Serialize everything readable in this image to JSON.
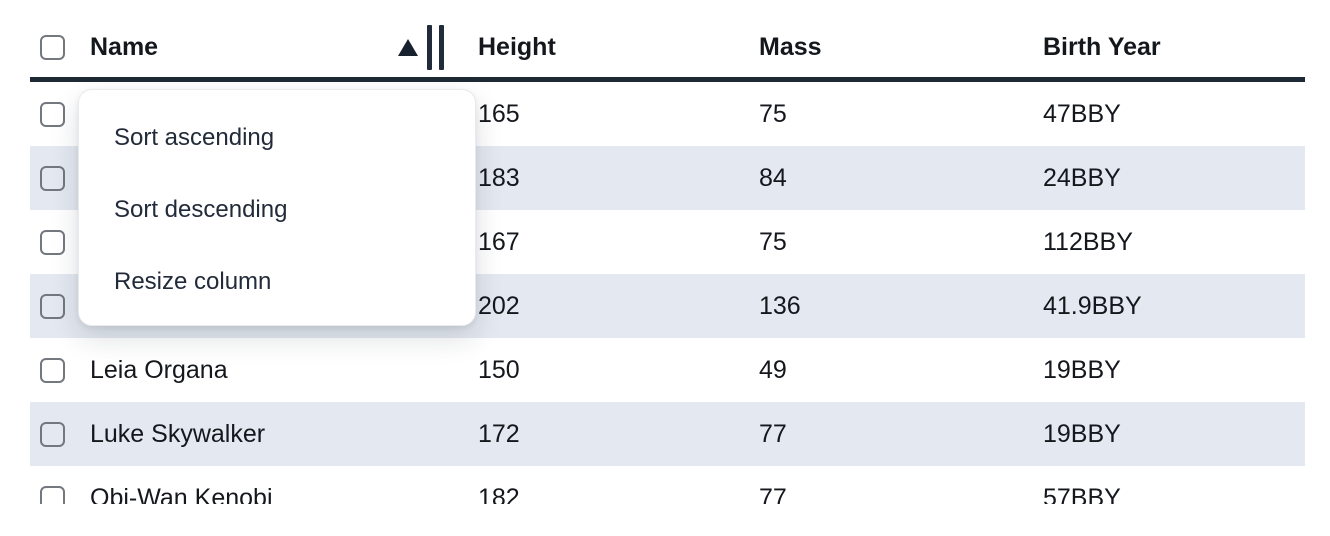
{
  "table": {
    "columns": [
      {
        "id": "name",
        "label": "Name",
        "sort": "ascending"
      },
      {
        "id": "height",
        "label": "Height",
        "sort": null
      },
      {
        "id": "mass",
        "label": "Mass",
        "sort": null
      },
      {
        "id": "birth_year",
        "label": "Birth Year",
        "sort": null
      }
    ],
    "select_all_checked": false,
    "rows": [
      {
        "name": "",
        "height": "165",
        "mass": "75",
        "birth_year": "47BBY"
      },
      {
        "name": "",
        "height": "183",
        "mass": "84",
        "birth_year": "24BBY"
      },
      {
        "name": "",
        "height": "167",
        "mass": "75",
        "birth_year": "112BBY"
      },
      {
        "name": "",
        "height": "202",
        "mass": "136",
        "birth_year": "41.9BBY"
      },
      {
        "name": "Leia Organa",
        "height": "150",
        "mass": "49",
        "birth_year": "19BBY"
      },
      {
        "name": "Luke Skywalker",
        "height": "172",
        "mass": "77",
        "birth_year": "19BBY"
      },
      {
        "name": "Obi-Wan Kenobi",
        "height": "182",
        "mass": "77",
        "birth_year": "57BBY"
      }
    ]
  },
  "menu": {
    "items": [
      "Sort ascending",
      "Sort descending",
      "Resize column"
    ]
  },
  "icons": {
    "sort_indicator": "up-triangle-ascending",
    "column_resize": "double-vertical-bars",
    "row_select": "empty-checkbox"
  },
  "colors": {
    "stripe_row": "#e4e8f0",
    "header_border": "#1e2936",
    "table_text": "#14171c",
    "menu_text": "#222b3a",
    "checkbox_border": "#73787f",
    "menu_background": "#ffffff"
  }
}
